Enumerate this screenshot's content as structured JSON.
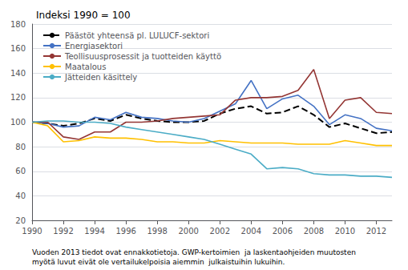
{
  "chart_data": {
    "type": "line",
    "title": "Indeksi 1990 = 100",
    "footnote": "Vuoden 2013 tiedot ovat ennakkotietoja. GWP-kertoimien  ja laskentaohjeiden muutosten\nmyötä luvut eivät ole vertailukelpoisia aiemmin  julkaistuihin lukuihin.",
    "x": [
      1990,
      1991,
      1992,
      1993,
      1994,
      1995,
      1996,
      1997,
      1998,
      1999,
      2000,
      2001,
      2002,
      2003,
      2004,
      2005,
      2006,
      2007,
      2008,
      2009,
      2010,
      2011,
      2012,
      2013
    ],
    "series": [
      {
        "name": "Päästöt yhteensä pl. LULUCF-sektori",
        "color": "#000000",
        "line_style": "dashed",
        "values": [
          100,
          99,
          97,
          99,
          103,
          101,
          106,
          103,
          101,
          100,
          100,
          101,
          107,
          111,
          113,
          107,
          108,
          113,
          106,
          96,
          99,
          95,
          91,
          92
        ]
      },
      {
        "name": "Energiasektori",
        "color": "#4472c4",
        "line_style": "solid",
        "values": [
          100,
          99,
          96,
          97,
          104,
          102,
          108,
          104,
          103,
          101,
          100,
          103,
          109,
          115,
          134,
          111,
          119,
          122,
          113,
          98,
          106,
          103,
          95,
          93
        ]
      },
      {
        "name": "Teollisuusprosessit ja tuotteiden käyttö",
        "color": "#943634",
        "line_style": "solid",
        "values": [
          100,
          100,
          88,
          86,
          92,
          92,
          100,
          100,
          101,
          103,
          104,
          105,
          106,
          118,
          120,
          120,
          121,
          126,
          143,
          103,
          118,
          120,
          108,
          107
        ]
      },
      {
        "name": "Maatalous",
        "color": "#FFC000",
        "line_style": "solid",
        "values": [
          100,
          97,
          84,
          85,
          88,
          87,
          87,
          86,
          84,
          84,
          83,
          83,
          85,
          84,
          83,
          83,
          83,
          82,
          82,
          82,
          85,
          83,
          81,
          81
        ]
      },
      {
        "name": "Jätteiden käsittely",
        "color": "#4BACC6",
        "line_style": "solid",
        "values": [
          100,
          101,
          101,
          100,
          100,
          99,
          96,
          94,
          92,
          90,
          88,
          86,
          82,
          78,
          74,
          62,
          63,
          62,
          58,
          57,
          57,
          56,
          56,
          55
        ]
      }
    ],
    "xlim": [
      1990,
      2013
    ],
    "xticks": [
      1990,
      1992,
      1994,
      1996,
      1998,
      2000,
      2002,
      2004,
      2006,
      2008,
      2010,
      2012
    ],
    "ylim": [
      20,
      180
    ],
    "yticks": [
      20,
      40,
      60,
      80,
      100,
      120,
      140,
      160,
      180
    ],
    "grid": true,
    "legend": "upper left"
  }
}
